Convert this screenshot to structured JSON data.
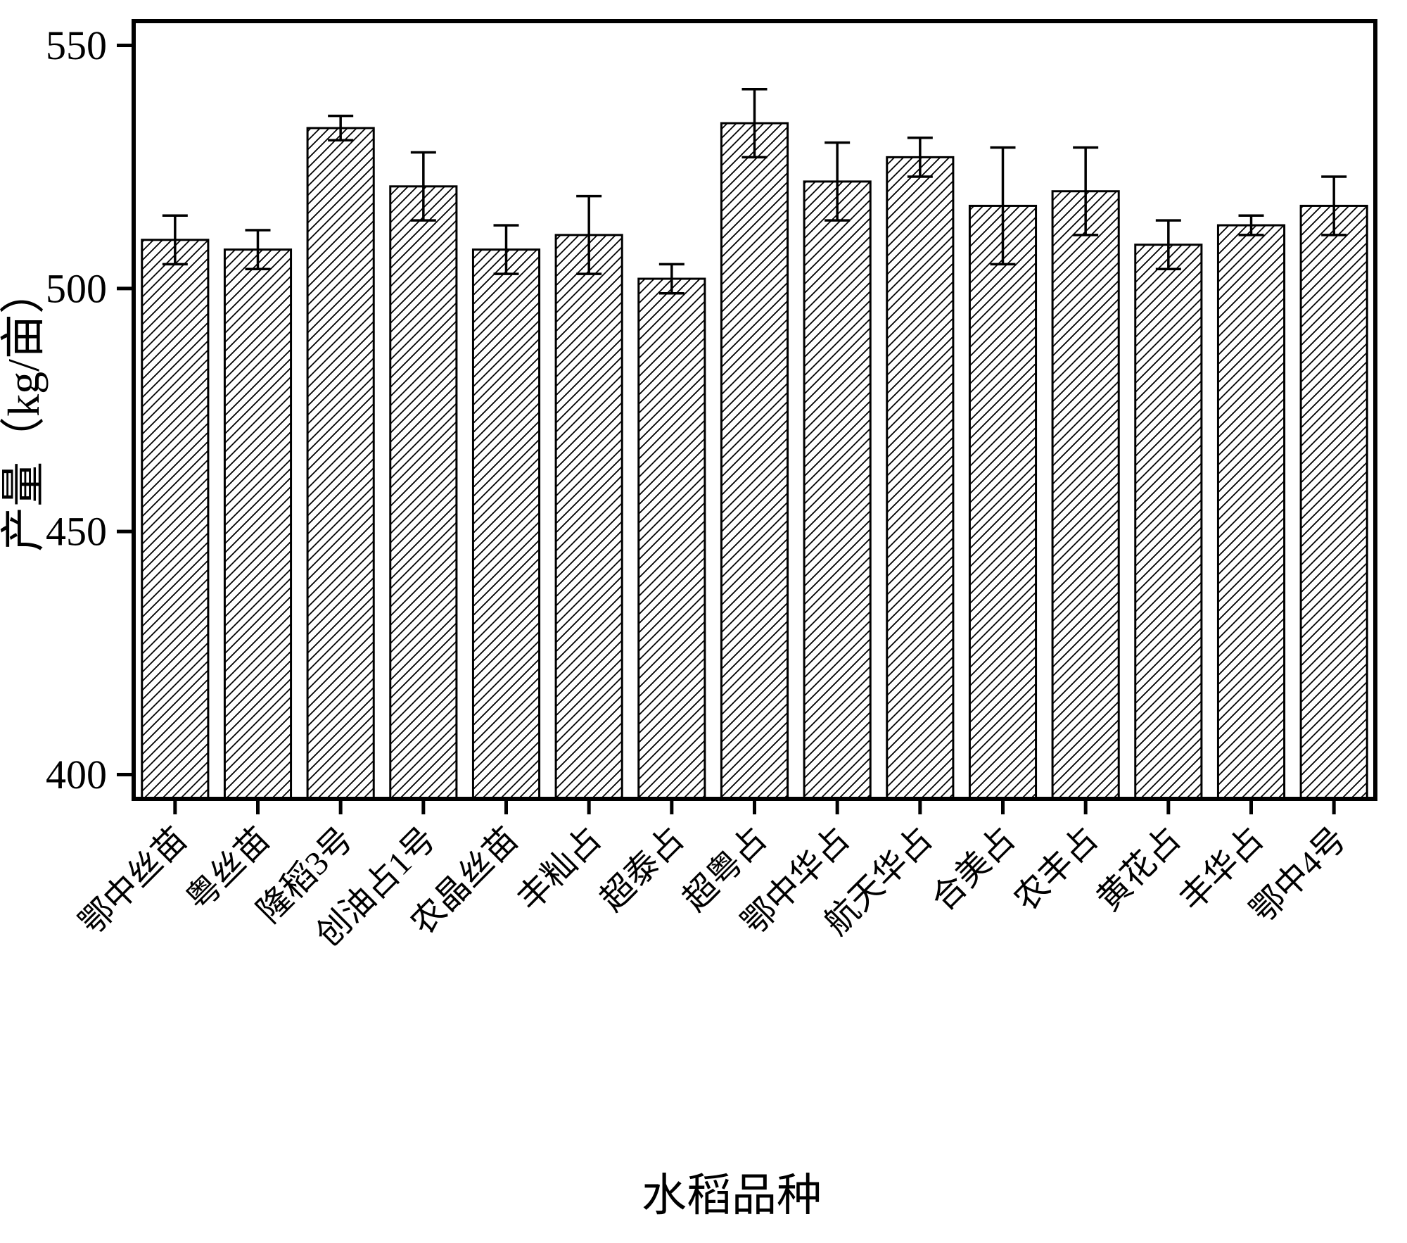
{
  "figure": {
    "background": "#ffffff",
    "frame_color": "#000000",
    "bar_fill": "#ffffff",
    "hatch_color": "#000000",
    "error_bar_color": "#000000"
  },
  "chart_data": {
    "type": "bar",
    "title": "",
    "xlabel": "水稻品种",
    "ylabel": "产量（kg/亩）",
    "categories": [
      "鄂中丝苗",
      "粤丝苗",
      "隆稻3号",
      "创油占1号",
      "农晶丝苗",
      "丰籼占",
      "超泰占",
      "超粤占",
      "鄂中华占",
      "航天华占",
      "合美占",
      "农丰占",
      "黄花占",
      "丰华占",
      "鄂中4号"
    ],
    "values": [
      510,
      508,
      533,
      521,
      508,
      511,
      502,
      534,
      522,
      527,
      517,
      520,
      509,
      513,
      517
    ],
    "errors": [
      5,
      4,
      2.5,
      7,
      5,
      8,
      3,
      7,
      8,
      4,
      12,
      9,
      5,
      2,
      6
    ],
    "yticks": [
      400,
      450,
      500,
      550
    ],
    "ylim": [
      395,
      555
    ],
    "grid": false,
    "legend": "none",
    "hatch": "diagonal-forward",
    "bar_width_fraction": 0.8
  }
}
